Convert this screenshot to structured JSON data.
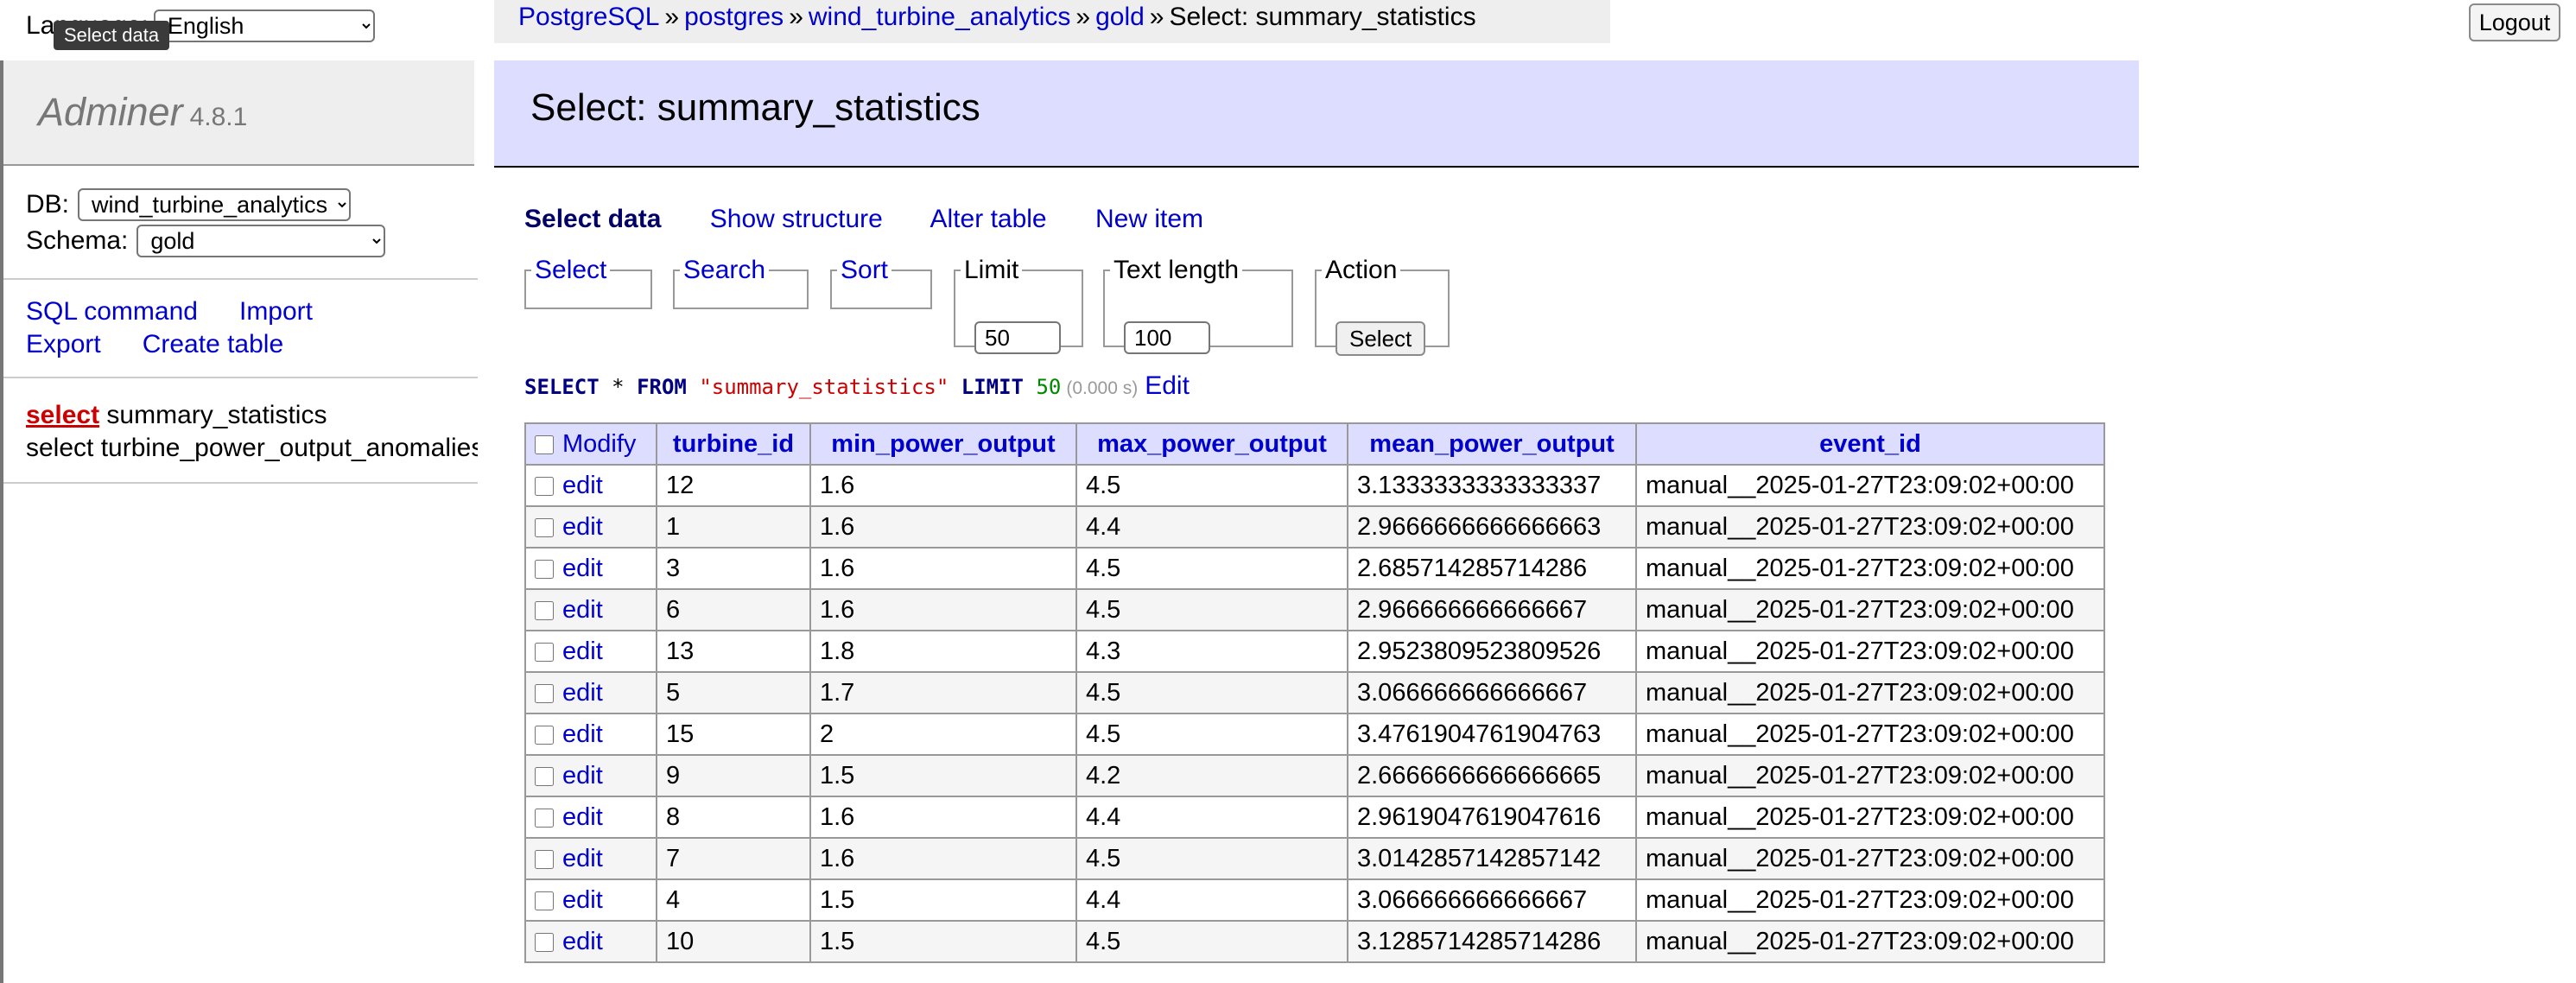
{
  "language": {
    "label": "Language:",
    "value": "English",
    "tooltip": "Select data"
  },
  "app": {
    "name": "Adminer",
    "version": "4.8.1"
  },
  "db": {
    "label": "DB:",
    "value": "wind_turbine_analytics"
  },
  "schema": {
    "label": "Schema:",
    "value": "gold"
  },
  "menu_links": {
    "sql": "SQL command",
    "import": "Import",
    "export": "Export",
    "create": "Create table"
  },
  "tables": [
    {
      "action": "select",
      "name": "summary_statistics"
    },
    {
      "action": "select",
      "name": "turbine_power_output_anomalies"
    }
  ],
  "breadcrumb": {
    "items": [
      "PostgreSQL",
      "postgres",
      "wind_turbine_analytics",
      "gold"
    ],
    "separator": "»",
    "current": "Select: summary_statistics"
  },
  "logout": "Logout",
  "page_title": "Select: summary_statistics",
  "subnav": {
    "current": "Select data",
    "show_structure": "Show structure",
    "alter_table": "Alter table",
    "new_item": "New item"
  },
  "fieldsets": {
    "select": "Select",
    "search": "Search",
    "sort": "Sort",
    "limit": {
      "legend": "Limit",
      "value": "50"
    },
    "text_length": {
      "legend": "Text length",
      "value": "100"
    },
    "action": {
      "legend": "Action",
      "button": "Select"
    }
  },
  "sql": {
    "kw1": "SELECT",
    "star": " * ",
    "kw2": "FROM",
    "table": "\"summary_statistics\"",
    "kw3": "LIMIT",
    "limit": "50",
    "time": "(0.000 s)",
    "edit": "Edit"
  },
  "table": {
    "modify_label": "Modify",
    "edit_label": "edit",
    "columns": [
      "turbine_id",
      "min_power_output",
      "max_power_output",
      "mean_power_output",
      "event_id"
    ],
    "rows": [
      [
        "12",
        "1.6",
        "4.5",
        "3.1333333333333337",
        "manual__2025-01-27T23:09:02+00:00"
      ],
      [
        "1",
        "1.6",
        "4.4",
        "2.9666666666666663",
        "manual__2025-01-27T23:09:02+00:00"
      ],
      [
        "3",
        "1.6",
        "4.5",
        "2.685714285714286",
        "manual__2025-01-27T23:09:02+00:00"
      ],
      [
        "6",
        "1.6",
        "4.5",
        "2.966666666666667",
        "manual__2025-01-27T23:09:02+00:00"
      ],
      [
        "13",
        "1.8",
        "4.3",
        "2.9523809523809526",
        "manual__2025-01-27T23:09:02+00:00"
      ],
      [
        "5",
        "1.7",
        "4.5",
        "3.066666666666667",
        "manual__2025-01-27T23:09:02+00:00"
      ],
      [
        "15",
        "2",
        "4.5",
        "3.4761904761904763",
        "manual__2025-01-27T23:09:02+00:00"
      ],
      [
        "9",
        "1.5",
        "4.2",
        "2.6666666666666665",
        "manual__2025-01-27T23:09:02+00:00"
      ],
      [
        "8",
        "1.6",
        "4.4",
        "2.9619047619047616",
        "manual__2025-01-27T23:09:02+00:00"
      ],
      [
        "7",
        "1.6",
        "4.5",
        "3.0142857142857142",
        "manual__2025-01-27T23:09:02+00:00"
      ],
      [
        "4",
        "1.5",
        "4.4",
        "3.066666666666667",
        "manual__2025-01-27T23:09:02+00:00"
      ],
      [
        "10",
        "1.5",
        "4.5",
        "3.1285714285714286",
        "manual__2025-01-27T23:09:02+00:00"
      ]
    ]
  }
}
